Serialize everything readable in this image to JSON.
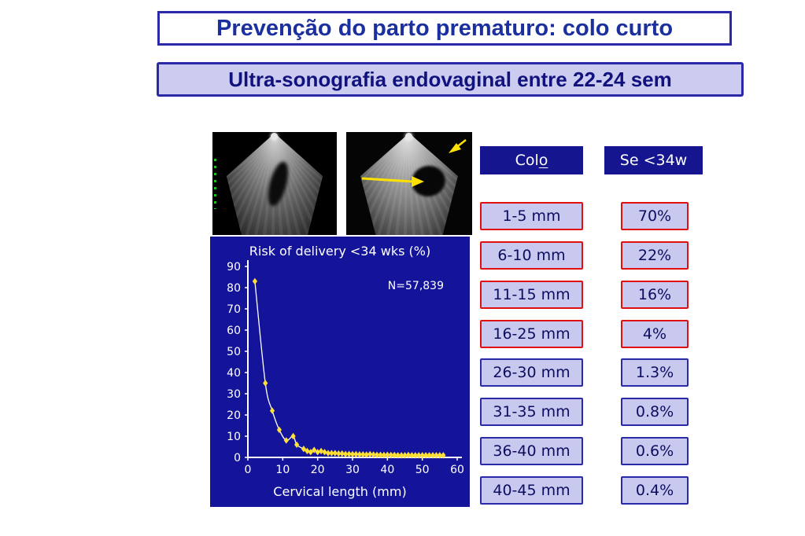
{
  "slide": {
    "title": "Prevenção do parto prematuro: colo curto",
    "subtitle": "Ultra-sonografia endovaginal entre 22-24 sem"
  },
  "table": {
    "col_header_prefix": "Col",
    "col_header_suffix": "o",
    "risk_header": "Se <34w",
    "rows": [
      {
        "range": "1-5 mm",
        "risk": "70%",
        "highlight": true
      },
      {
        "range": "6-10 mm",
        "risk": "22%",
        "highlight": true
      },
      {
        "range": "11-15 mm",
        "risk": "16%",
        "highlight": true
      },
      {
        "range": "16-25 mm",
        "risk": "4%",
        "highlight": true
      },
      {
        "range": "26-30 mm",
        "risk": "1.3%",
        "highlight": false
      },
      {
        "range": "31-35 mm",
        "risk": "0.8%",
        "highlight": false
      },
      {
        "range": "36-40 mm",
        "risk": "0.6%",
        "highlight": false
      },
      {
        "range": "40-45 mm",
        "risk": "0.4%",
        "highlight": false
      }
    ]
  },
  "chart_data": {
    "type": "scatter",
    "title": "Risk of delivery <34 wks (%)",
    "annotation": "N=57,839",
    "xlabel": "Cervical length (mm)",
    "xlim": [
      0,
      60
    ],
    "ylim": [
      0,
      90
    ],
    "x_ticks": [
      0,
      10,
      20,
      30,
      40,
      50,
      60
    ],
    "y_ticks": [
      0,
      10,
      20,
      30,
      40,
      50,
      60,
      70,
      80,
      90
    ],
    "points": [
      [
        2,
        83
      ],
      [
        5,
        35
      ],
      [
        7,
        22
      ],
      [
        9,
        13
      ],
      [
        11,
        8
      ],
      [
        13,
        10
      ],
      [
        14,
        6
      ],
      [
        16,
        4
      ],
      [
        17,
        3
      ],
      [
        18,
        2.5
      ],
      [
        19,
        3.5
      ],
      [
        20,
        2.5
      ],
      [
        21,
        3
      ],
      [
        22,
        2.5
      ],
      [
        23,
        2
      ],
      [
        24,
        2
      ],
      [
        25,
        2
      ],
      [
        26,
        1.8
      ],
      [
        27,
        1.8
      ],
      [
        28,
        1.6
      ],
      [
        29,
        1.6
      ],
      [
        30,
        1.5
      ],
      [
        31,
        1.5
      ],
      [
        32,
        1.4
      ],
      [
        33,
        1.4
      ],
      [
        34,
        1.3
      ],
      [
        35,
        1.5
      ],
      [
        36,
        1.3
      ],
      [
        37,
        1.2
      ],
      [
        38,
        1.2
      ],
      [
        39,
        1.1
      ],
      [
        40,
        1.2
      ],
      [
        41,
        1.1
      ],
      [
        42,
        1.1
      ],
      [
        43,
        1
      ],
      [
        44,
        1
      ],
      [
        45,
        1
      ],
      [
        46,
        1.1
      ],
      [
        47,
        1
      ],
      [
        48,
        1
      ],
      [
        49,
        1
      ],
      [
        50,
        1
      ],
      [
        51,
        1
      ],
      [
        52,
        1
      ],
      [
        53,
        1
      ],
      [
        54,
        1
      ],
      [
        55,
        1
      ],
      [
        56,
        1
      ]
    ],
    "curve": true,
    "marker_color": "#ffe033",
    "line_color": "#ffffff",
    "axis_color": "#ffffff",
    "background": "#14149b"
  },
  "colors": {
    "navy": "#15158f",
    "title_blue": "#1c2f9e",
    "lavender_fill": "#c9c9ef",
    "red_border": "#e01010",
    "blue_border": "#2a2aa8",
    "chart_background": "#14149b",
    "marker_yellow": "#ffe033",
    "arrow_yellow": "#ffe100"
  }
}
